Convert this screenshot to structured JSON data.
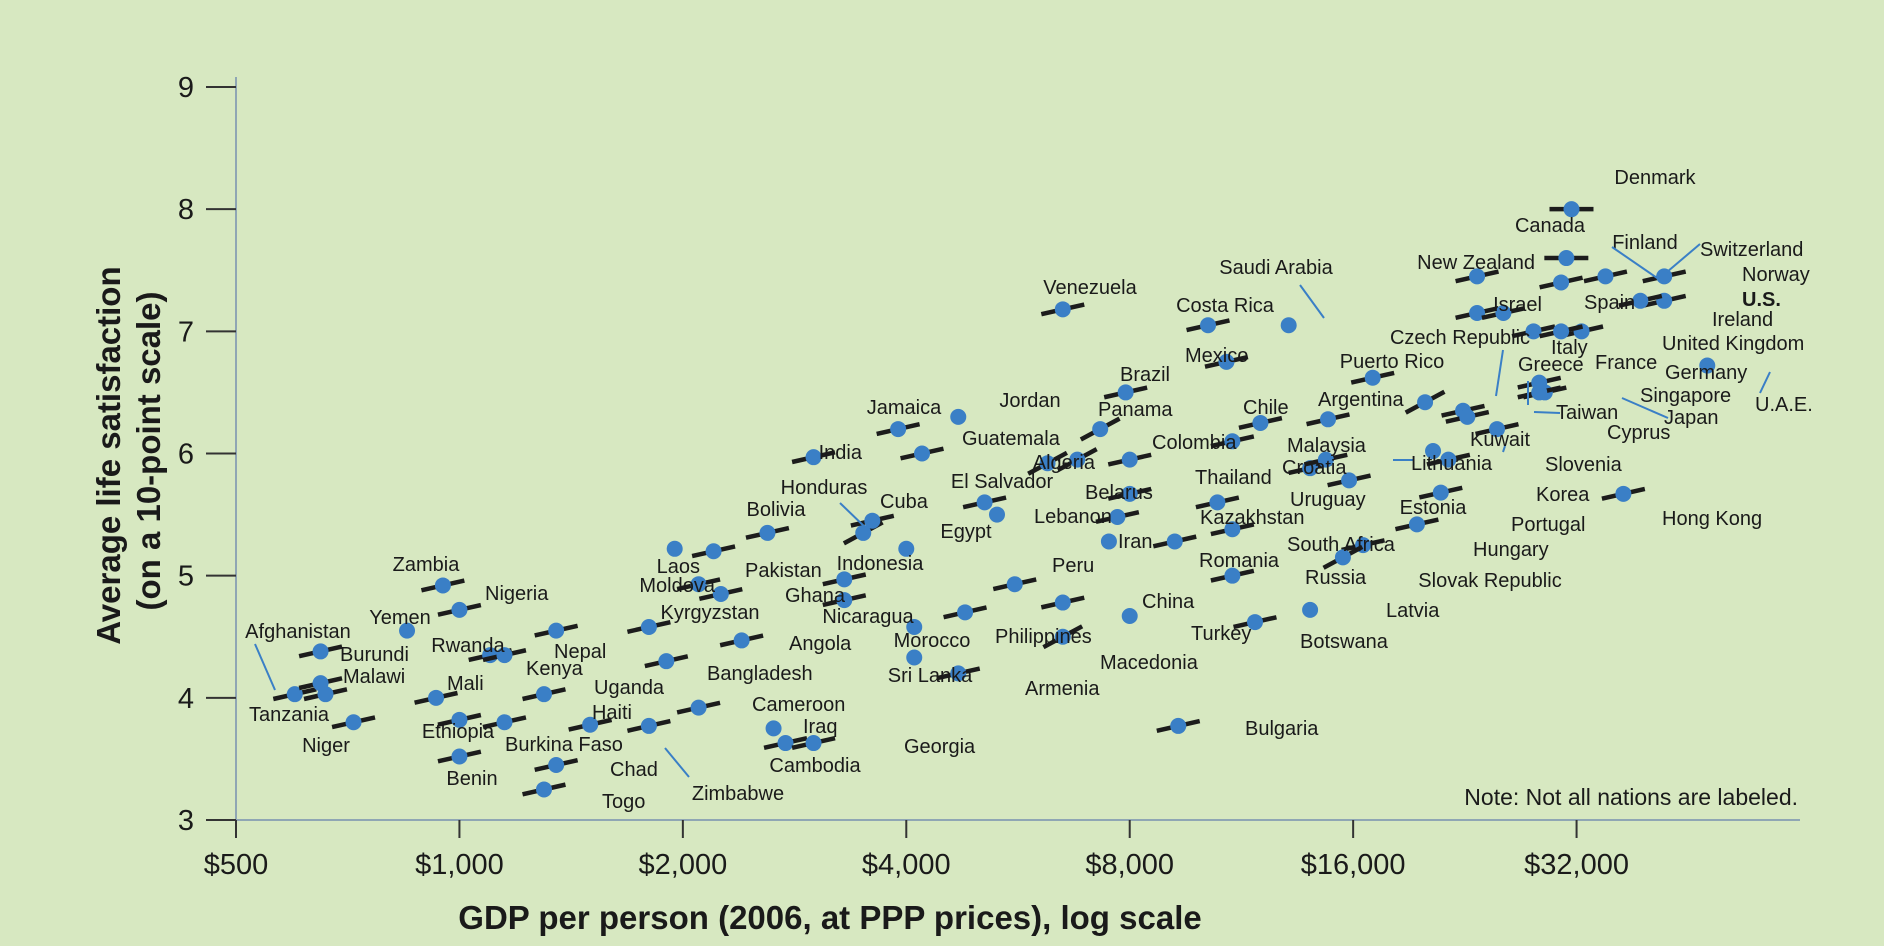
{
  "chart_data": {
    "type": "scatter",
    "title": "",
    "xlabel": "GDP per person (2006, at PPP prices), log scale",
    "ylabel_lines": [
      "Average life satisfaction",
      "(on a 10-point scale)"
    ],
    "x_scale": "log2",
    "xlim": [
      500,
      64000
    ],
    "ylim": [
      3,
      9
    ],
    "x_ticks": [
      500,
      1000,
      2000,
      4000,
      8000,
      16000,
      32000
    ],
    "x_tick_labels": [
      "$500",
      "$1,000",
      "$2,000",
      "$4,000",
      "$8,000",
      "$16,000",
      "$32,000"
    ],
    "y_ticks": [
      3,
      4,
      5,
      6,
      7,
      8,
      9
    ],
    "y_tick_labels": [
      "3",
      "4",
      "5",
      "6",
      "7",
      "8",
      "9"
    ],
    "note": "Note: Not all nations are labeled.",
    "colors": {
      "dot": "#3a7fc6",
      "line": "#1c1c1c",
      "leader": "#3a7fc6",
      "axis": "#8fa6b4",
      "background": "#d7e8c1"
    },
    "points": [
      {
        "name": "Denmark",
        "x": 31500,
        "y": 8.0,
        "dir": 0
      },
      {
        "name": "Finland",
        "x": 31000,
        "y": 7.6,
        "dir": 0
      },
      {
        "name": "Canada",
        "x": 30500,
        "y": 7.4,
        "dir": 0.5
      },
      {
        "name": "Switzerland",
        "x": 35000,
        "y": 7.45,
        "dir": 0.5
      },
      {
        "name": "Norway",
        "x": 42000,
        "y": 7.45,
        "dir": 0.5
      },
      {
        "name": "U.S.",
        "x": 42000,
        "y": 7.25,
        "dir": 0.5
      },
      {
        "name": "Ireland",
        "x": 39000,
        "y": 7.25,
        "dir": 0.5
      },
      {
        "name": "New Zealand",
        "x": 23500,
        "y": 7.45,
        "dir": 0.5
      },
      {
        "name": "Saudi Arabia",
        "x": 13100,
        "y": 7.05,
        "dir": null
      },
      {
        "name": "Israel",
        "x": 23500,
        "y": 7.15,
        "dir": 0.5
      },
      {
        "name": "Spain",
        "x": 25500,
        "y": 7.15,
        "dir": 0.5
      },
      {
        "name": "Italy",
        "x": 28000,
        "y": 7.0,
        "dir": 0.5
      },
      {
        "name": "United Kingdom",
        "x": 32500,
        "y": 7.0,
        "dir": 0.5
      },
      {
        "name": "France",
        "x": 30500,
        "y": 7.0,
        "dir": 0.5
      },
      {
        "name": "U.A.E.",
        "x": 48000,
        "y": 6.72,
        "dir": null
      },
      {
        "name": "Venezuela",
        "x": 6500,
        "y": 7.18,
        "dir": 0.5
      },
      {
        "name": "Costa Rica",
        "x": 10200,
        "y": 7.05,
        "dir": 0.5
      },
      {
        "name": "Mexico",
        "x": 10800,
        "y": 6.75,
        "dir": 0.5
      },
      {
        "name": "Czech Republic",
        "x": 20000,
        "y": 6.42,
        "dir": 1.2
      },
      {
        "name": "Puerto Rico",
        "x": 17000,
        "y": 6.62,
        "dir": 0.5
      },
      {
        "name": "Greece",
        "x": 22500,
        "y": 6.35,
        "dir": 0.5
      },
      {
        "name": "Germany",
        "x": 28500,
        "y": 6.58,
        "dir": 0.5
      },
      {
        "name": "Singapore",
        "x": 29000,
        "y": 6.5,
        "dir": 0.5
      },
      {
        "name": "Japan",
        "x": 28500,
        "y": 6.5,
        "dir": 0.5
      },
      {
        "name": "Taiwan",
        "x": 22800,
        "y": 6.3,
        "dir": 0.5
      },
      {
        "name": "Cyprus",
        "x": 25000,
        "y": 6.2,
        "dir": 0.5
      },
      {
        "name": "Brazil",
        "x": 7900,
        "y": 6.5,
        "dir": 0.5
      },
      {
        "name": "Argentina",
        "x": 14800,
        "y": 6.28,
        "dir": 0.5
      },
      {
        "name": "Chile",
        "x": 12000,
        "y": 6.25,
        "dir": 0.5
      },
      {
        "name": "Jordan",
        "x": 4700,
        "y": 6.3,
        "dir": null
      },
      {
        "name": "Panama",
        "x": 7300,
        "y": 6.2,
        "dir": 1.2
      },
      {
        "name": "Jamaica",
        "x": 3900,
        "y": 6.2,
        "dir": 0.5
      },
      {
        "name": "Guatemala",
        "x": 4200,
        "y": 6.0,
        "dir": 0.5
      },
      {
        "name": "India",
        "x": 3000,
        "y": 5.97,
        "dir": 0.5
      },
      {
        "name": "Colombia",
        "x": 6800,
        "y": 5.95,
        "dir": 1.2
      },
      {
        "name": "Algeria",
        "x": 6200,
        "y": 5.92,
        "dir": 1.2
      },
      {
        "name": "Malaysia",
        "x": 11000,
        "y": 6.1,
        "dir": 0.5
      },
      {
        "name": "Croatia",
        "x": 14000,
        "y": 5.88,
        "dir": 0.5
      },
      {
        "name": "Lithuania",
        "x": 14700,
        "y": 5.95,
        "dir": 0.5
      },
      {
        "name": "Kuwait",
        "x": 20500,
        "y": 6.02,
        "dir": null
      },
      {
        "name": "Slovenia",
        "x": 21500,
        "y": 5.95,
        "dir": 0.5
      },
      {
        "name": "Thailand",
        "x": 8000,
        "y": 5.95,
        "dir": 0.5
      },
      {
        "name": "Belarus",
        "x": 8000,
        "y": 5.67,
        "dir": 0.5
      },
      {
        "name": "El Salvador",
        "x": 5100,
        "y": 5.6,
        "dir": 0.5
      },
      {
        "name": "Lebanon",
        "x": 5300,
        "y": 5.5,
        "dir": null
      },
      {
        "name": "Uruguay",
        "x": 10500,
        "y": 5.6,
        "dir": 0.5
      },
      {
        "name": "Estonia",
        "x": 15800,
        "y": 5.78,
        "dir": 0.5
      },
      {
        "name": "Korea",
        "x": 21000,
        "y": 5.68,
        "dir": 0.5
      },
      {
        "name": "Hong Kong",
        "x": 37000,
        "y": 5.67,
        "dir": 0.5
      },
      {
        "name": "Kazakhstan",
        "x": 7700,
        "y": 5.48,
        "dir": 0.5
      },
      {
        "name": "Honduras",
        "x": 3500,
        "y": 5.35,
        "dir": 1.2
      },
      {
        "name": "Cuba",
        "x": 3600,
        "y": 5.45,
        "dir": 0.5
      },
      {
        "name": "Bolivia",
        "x": 2600,
        "y": 5.35,
        "dir": 0.5
      },
      {
        "name": "Egypt",
        "x": 4000,
        "y": 5.22,
        "dir": null
      },
      {
        "name": "Iran",
        "x": 7500,
        "y": 5.28,
        "dir": null
      },
      {
        "name": "South Africa",
        "x": 11000,
        "y": 5.38,
        "dir": 0.5
      },
      {
        "name": "Portugal",
        "x": 19500,
        "y": 5.42,
        "dir": 0.5
      },
      {
        "name": "Hungary",
        "x": 16500,
        "y": 5.25,
        "dir": 0.5
      },
      {
        "name": "Slovak Republic",
        "x": 15500,
        "y": 5.15,
        "dir": 1.2
      },
      {
        "name": "Romania",
        "x": 9200,
        "y": 5.28,
        "dir": 0.5
      },
      {
        "name": "Russia",
        "x": 11000,
        "y": 5.0,
        "dir": 0.5
      },
      {
        "name": "Laos",
        "x": 1950,
        "y": 5.22,
        "dir": null
      },
      {
        "name": "Pakistan",
        "x": 2200,
        "y": 5.2,
        "dir": 0.5
      },
      {
        "name": "Moldova",
        "x": 2100,
        "y": 4.93,
        "dir": 0.5
      },
      {
        "name": "Indonesia",
        "x": 3300,
        "y": 4.97,
        "dir": 0.5
      },
      {
        "name": "Peru",
        "x": 5600,
        "y": 4.93,
        "dir": 0.5
      },
      {
        "name": "Zambia",
        "x": 950,
        "y": 4.92,
        "dir": 0.5
      },
      {
        "name": "Nigeria",
        "x": 1000,
        "y": 4.72,
        "dir": 0.5
      },
      {
        "name": "Ghana",
        "x": 2250,
        "y": 4.85,
        "dir": 0.5
      },
      {
        "name": "Kyrgyzstan",
        "x": 1800,
        "y": 4.58,
        "dir": 0.5
      },
      {
        "name": "Nicaragua",
        "x": 3300,
        "y": 4.8,
        "dir": 0.5
      },
      {
        "name": "China",
        "x": 6500,
        "y": 4.78,
        "dir": 0.5
      },
      {
        "name": "Turkey",
        "x": 8000,
        "y": 4.67,
        "dir": null
      },
      {
        "name": "Latvia",
        "x": 14000,
        "y": 4.72,
        "dir": null
      },
      {
        "name": "Botswana",
        "x": 11800,
        "y": 4.62,
        "dir": 0.5
      },
      {
        "name": "Yemen",
        "x": 850,
        "y": 4.55,
        "dir": null
      },
      {
        "name": "Afghanistan",
        "x": 600,
        "y": 4.03,
        "dir": 0.5
      },
      {
        "name": "Burundi",
        "x": 650,
        "y": 4.38,
        "dir": 0.5
      },
      {
        "name": "Rwanda",
        "x": 1100,
        "y": 4.35,
        "dir": 0.5
      },
      {
        "name": "Nepal",
        "x": 1350,
        "y": 4.55,
        "dir": 0.5
      },
      {
        "name": "Kenya",
        "x": 1150,
        "y": 4.35,
        "dir": 0.5
      },
      {
        "name": "Angola",
        "x": 2400,
        "y": 4.47,
        "dir": 0.5
      },
      {
        "name": "Morocco",
        "x": 4100,
        "y": 4.58,
        "dir": null
      },
      {
        "name": "Philippines",
        "x": 4800,
        "y": 4.7,
        "dir": 0.5
      },
      {
        "name": "Macedonia",
        "x": 6500,
        "y": 4.5,
        "dir": 1.2
      },
      {
        "name": "Bangladesh",
        "x": 1900,
        "y": 4.3,
        "dir": 0.5
      },
      {
        "name": "Sri Lanka",
        "x": 4100,
        "y": 4.33,
        "dir": null
      },
      {
        "name": "Armenia",
        "x": 4700,
        "y": 4.2,
        "dir": 0.5
      },
      {
        "name": "Malawi",
        "x": 650,
        "y": 4.12,
        "dir": 0.5
      },
      {
        "name": "Mali",
        "x": 930,
        "y": 4.0,
        "dir": 0.5
      },
      {
        "name": "Uganda",
        "x": 1300,
        "y": 4.03,
        "dir": 0.5
      },
      {
        "name": "Tanzania",
        "x": 660,
        "y": 4.03,
        "dir": 0.5
      },
      {
        "name": "Cameroon",
        "x": 2100,
        "y": 3.92,
        "dir": 0.5
      },
      {
        "name": "Niger",
        "x": 720,
        "y": 3.8,
        "dir": 0.5
      },
      {
        "name": "Ethiopia",
        "x": 1000,
        "y": 3.82,
        "dir": 0.5
      },
      {
        "name": "Burkina Faso",
        "x": 1150,
        "y": 3.8,
        "dir": 0.5
      },
      {
        "name": "Haiti",
        "x": 1500,
        "y": 3.78,
        "dir": 0.5
      },
      {
        "name": "Zimbabwe",
        "x": 1800,
        "y": 3.77,
        "dir": 0.5
      },
      {
        "name": "Iraq",
        "x": 2750,
        "y": 3.63,
        "dir": 0.5
      },
      {
        "name": "Georgia",
        "x": 3000,
        "y": 3.63,
        "dir": 0.5
      },
      {
        "name": "Bulgaria",
        "x": 9300,
        "y": 3.77,
        "dir": 0.5
      },
      {
        "name": "Chad",
        "x": 1350,
        "y": 3.45,
        "dir": 0.5
      },
      {
        "name": "Benin",
        "x": 1000,
        "y": 3.52,
        "dir": 0.5
      },
      {
        "name": "Togo",
        "x": 1300,
        "y": 3.25,
        "dir": 0.5
      },
      {
        "name": "Cambodia",
        "x": 2650,
        "y": 3.75,
        "dir": null
      }
    ]
  }
}
